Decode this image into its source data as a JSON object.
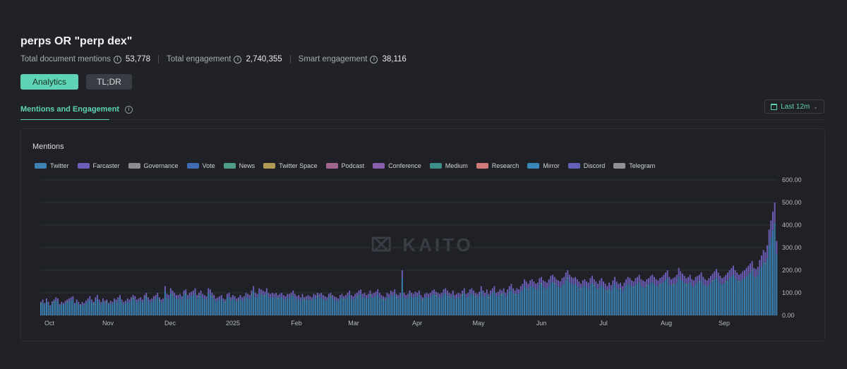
{
  "header": {
    "title": "perps OR \"perp dex\"",
    "stats": [
      {
        "label": "Total document mentions",
        "value": "53,778"
      },
      {
        "label": "Total engagement",
        "value": "2,740,355"
      },
      {
        "label": "Smart engagement",
        "value": "38,116"
      }
    ]
  },
  "tabs": {
    "analytics": "Analytics",
    "tldr": "TL;DR"
  },
  "section": {
    "tab_label": "Mentions and Engagement",
    "period": "Last 12m"
  },
  "card": {
    "title": "Mentions"
  },
  "watermark": "KAITO",
  "legend": [
    {
      "name": "Twitter",
      "color": "#3d82b3"
    },
    {
      "name": "Farcaster",
      "color": "#6c5fb8"
    },
    {
      "name": "Governance",
      "color": "#8a8c90"
    },
    {
      "name": "Vote",
      "color": "#3f6bb5"
    },
    {
      "name": "News",
      "color": "#4f9e8a"
    },
    {
      "name": "Twitter Space",
      "color": "#b09a55"
    },
    {
      "name": "Podcast",
      "color": "#a0668e"
    },
    {
      "name": "Conference",
      "color": "#8a60ae"
    },
    {
      "name": "Medium",
      "color": "#3d8f8a"
    },
    {
      "name": "Research",
      "color": "#d07a7a"
    },
    {
      "name": "Mirror",
      "color": "#3a86b8"
    },
    {
      "name": "Discord",
      "color": "#6460b6"
    },
    {
      "name": "Telegram",
      "color": "#8f9195"
    }
  ],
  "chart_data": {
    "type": "bar",
    "stacked": true,
    "title": "Mentions",
    "x_ticks": [
      "Oct",
      "Nov",
      "Dec",
      "2025",
      "Feb",
      "Mar",
      "Apr",
      "May",
      "Jun",
      "Jul",
      "Aug",
      "Sep"
    ],
    "y_ticks": [
      "0.00",
      "100.00",
      "200.00",
      "300.00",
      "400.00",
      "500.00",
      "600.00"
    ],
    "ylim": [
      0,
      600
    ],
    "grid": true,
    "legend_position": "top",
    "series": [
      {
        "name": "Twitter",
        "values": [
          60,
          70,
          55,
          75,
          60,
          45,
          62,
          70,
          80,
          75,
          50,
          60,
          55,
          65,
          70,
          75,
          80,
          85,
          55,
          70,
          60,
          50,
          60,
          55,
          65,
          75,
          85,
          70,
          60,
          80,
          90,
          70,
          60,
          75,
          65,
          70,
          55,
          65,
          60,
          75,
          70,
          80,
          90,
          70,
          60,
          65,
          75,
          70,
          80,
          90,
          85,
          70,
          75,
          80,
          70,
          90,
          100,
          80,
          70,
          75,
          85,
          90,
          100,
          80,
          70,
          75,
          130,
          95,
          90,
          120,
          110,
          100,
          90,
          90,
          95,
          85,
          110,
          115,
          90,
          100,
          105,
          110,
          120,
          90,
          100,
          110,
          95,
          90,
          85,
          120,
          115,
          100,
          90,
          75,
          80,
          85,
          90,
          75,
          70,
          95,
          100,
          80,
          90,
          85,
          75,
          80,
          90,
          80,
          85,
          100,
          95,
          90,
          110,
          130,
          100,
          95,
          120,
          115,
          110,
          105,
          120,
          100,
          95,
          100,
          95,
          100,
          90,
          95,
          100,
          90,
          85,
          95,
          95,
          100,
          110,
          95,
          85,
          90,
          80,
          95,
          80,
          85,
          90,
          85,
          80,
          95,
          90,
          100,
          95,
          100,
          90,
          85,
          80,
          95,
          100,
          90,
          85,
          80,
          75,
          90,
          95,
          85,
          90,
          100,
          110,
          90,
          85,
          95,
          100,
          110,
          115,
          95,
          100,
          90,
          95,
          110,
          95,
          100,
          105,
          115,
          100,
          90,
          85,
          80,
          100,
          95,
          110,
          105,
          115,
          95,
          90,
          100,
          200,
          100,
          90,
          95,
          110,
          100,
          95,
          105,
          100,
          110,
          90,
          80,
          95,
          100,
          95,
          100,
          110,
          115,
          105,
          100,
          95,
          100,
          115,
          120,
          110,
          100,
          95,
          110,
          90,
          95,
          100,
          95,
          110,
          120,
          95,
          100,
          115,
          120,
          110,
          100,
          95,
          105,
          130,
          110,
          100,
          115,
          95,
          110,
          120,
          130,
          100,
          105,
          115,
          110,
          120,
          100,
          115,
          130,
          140,
          120,
          110,
          120,
          115,
          130,
          140,
          160,
          150,
          140,
          155,
          160,
          150,
          140,
          145,
          165,
          170,
          155,
          150,
          145,
          160,
          175,
          180,
          170,
          160,
          155,
          150,
          165,
          170,
          190,
          200,
          180,
          170,
          165,
          170,
          160,
          150,
          140,
          155,
          160,
          150,
          145,
          165,
          175,
          160,
          150,
          140,
          155,
          165,
          150,
          140,
          130,
          145,
          135,
          155,
          170,
          150,
          140,
          145,
          130,
          145,
          160,
          170,
          165,
          155,
          150,
          165,
          170,
          180,
          160,
          155,
          150,
          160,
          165,
          175,
          180,
          170,
          160,
          155,
          165,
          170,
          180,
          190,
          200,
          170,
          160,
          165,
          170,
          180,
          210,
          195,
          185,
          175,
          165,
          170,
          180,
          160,
          155,
          170,
          175,
          180,
          190,
          170,
          160,
          155,
          165,
          175,
          185,
          195,
          205,
          190,
          175,
          165,
          170,
          180,
          190,
          200,
          210,
          220,
          200,
          190,
          180,
          185,
          195,
          200,
          210,
          220,
          230,
          240,
          210,
          205,
          215,
          245,
          265,
          290,
          280,
          310,
          380,
          420,
          460,
          500,
          330
        ]
      }
    ]
  }
}
